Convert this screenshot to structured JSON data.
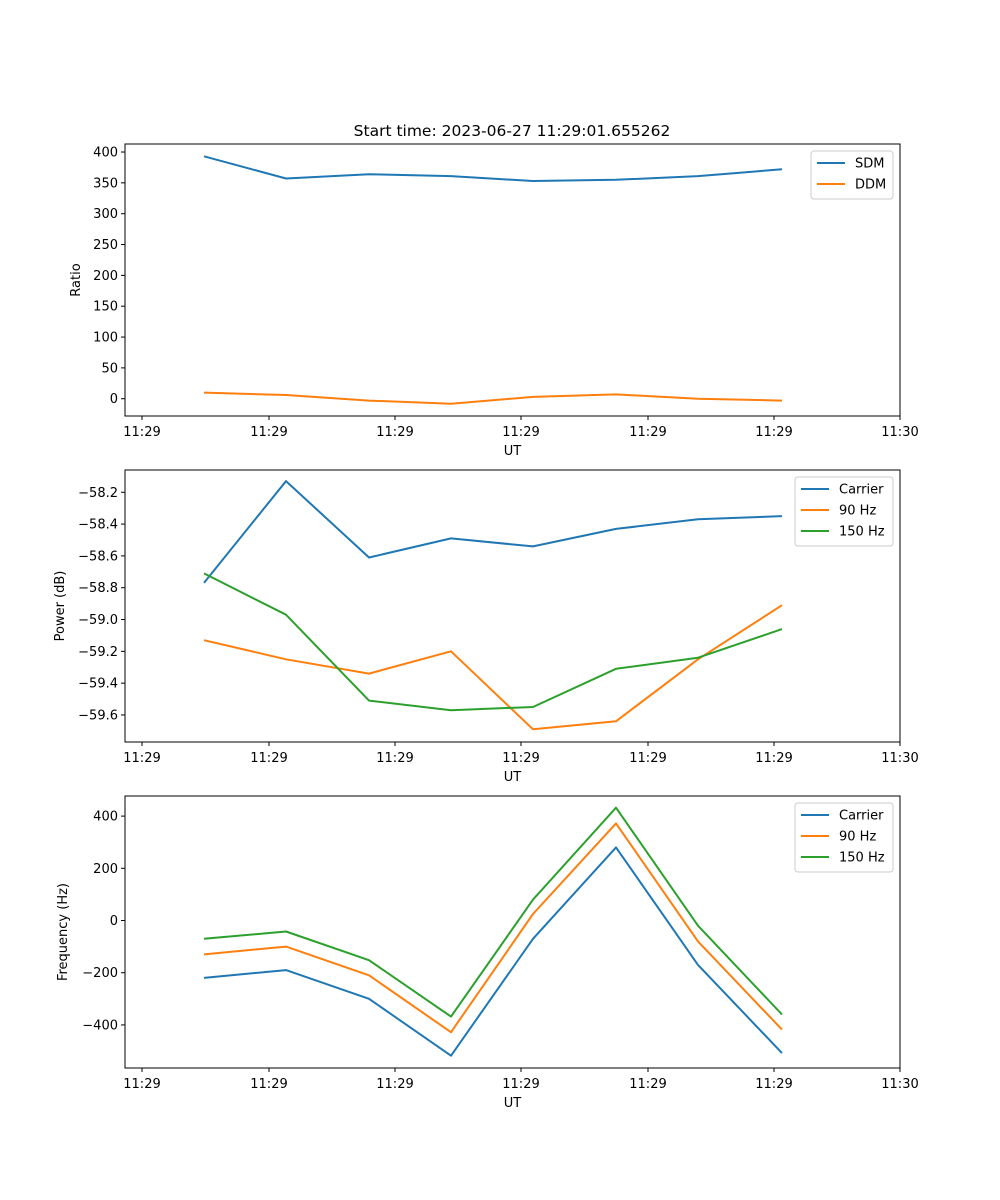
{
  "figure": {
    "title": "Start time: 2023-06-27 11:29:01.655262"
  },
  "chart_data": [
    {
      "type": "line",
      "title": "Start time: 2023-06-27 11:29:01.655262",
      "xlabel": "UT",
      "ylabel": "Ratio",
      "x_tick_labels": [
        "11:29",
        "11:29",
        "11:29",
        "11:29",
        "11:29",
        "11:29",
        "11:30"
      ],
      "y_ticks": [
        0,
        50,
        100,
        150,
        200,
        250,
        300,
        350,
        400
      ],
      "ylim": [
        -28,
        413
      ],
      "grid": false,
      "legend_position": "top-right",
      "series": [
        {
          "name": "SDM",
          "color": "#1f77b4",
          "values": [
            393,
            357,
            364,
            361,
            353,
            355,
            361,
            372
          ]
        },
        {
          "name": "DDM",
          "color": "#ff7f0e",
          "values": [
            10,
            6,
            -3,
            -8,
            3,
            7,
            0,
            -3
          ]
        }
      ]
    },
    {
      "type": "line",
      "title": "",
      "xlabel": "UT",
      "ylabel": "Power (dB)",
      "x_tick_labels": [
        "11:29",
        "11:29",
        "11:29",
        "11:29",
        "11:29",
        "11:29",
        "11:30"
      ],
      "y_ticks": [
        -59.6,
        -59.4,
        -59.2,
        -59.0,
        -58.8,
        -58.6,
        -58.4,
        -58.2
      ],
      "y_tick_labels": [
        "−59.6",
        "−59.4",
        "−59.2",
        "−59.0",
        "−58.8",
        "−58.6",
        "−58.4",
        "−58.2"
      ],
      "ylim": [
        -59.77,
        -58.06
      ],
      "grid": false,
      "legend_position": "top-right",
      "series": [
        {
          "name": "Carrier",
          "color": "#1f77b4",
          "values": [
            -58.77,
            -58.13,
            -58.61,
            -58.49,
            -58.54,
            -58.43,
            -58.37,
            -58.35
          ]
        },
        {
          "name": "90 Hz",
          "color": "#ff7f0e",
          "values": [
            -59.13,
            -59.25,
            -59.34,
            -59.2,
            -59.69,
            -59.64,
            -59.25,
            -58.91
          ]
        },
        {
          "name": "150 Hz",
          "color": "#2ca02c",
          "values": [
            -58.71,
            -58.97,
            -59.51,
            -59.57,
            -59.55,
            -59.31,
            -59.24,
            -59.06
          ]
        }
      ]
    },
    {
      "type": "line",
      "title": "",
      "xlabel": "UT",
      "ylabel": "Frequency (Hz)",
      "x_tick_labels": [
        "11:29",
        "11:29",
        "11:29",
        "11:29",
        "11:29",
        "11:29",
        "11:30"
      ],
      "y_ticks": [
        -400,
        -200,
        0,
        200,
        400
      ],
      "y_tick_labels": [
        "−400",
        "−200",
        "0",
        "200",
        "400"
      ],
      "ylim": [
        -565,
        477
      ],
      "grid": false,
      "legend_position": "top-right",
      "series": [
        {
          "name": "Carrier",
          "color": "#1f77b4",
          "values": [
            -220,
            -190,
            -300,
            -518,
            -70,
            280,
            -170,
            -508
          ]
        },
        {
          "name": "90 Hz",
          "color": "#ff7f0e",
          "values": [
            -130,
            -100,
            -210,
            -428,
            25,
            372,
            -80,
            -418
          ]
        },
        {
          "name": "150 Hz",
          "color": "#2ca02c",
          "values": [
            -70,
            -42,
            -152,
            -368,
            80,
            432,
            -20,
            -360
          ]
        }
      ]
    }
  ]
}
